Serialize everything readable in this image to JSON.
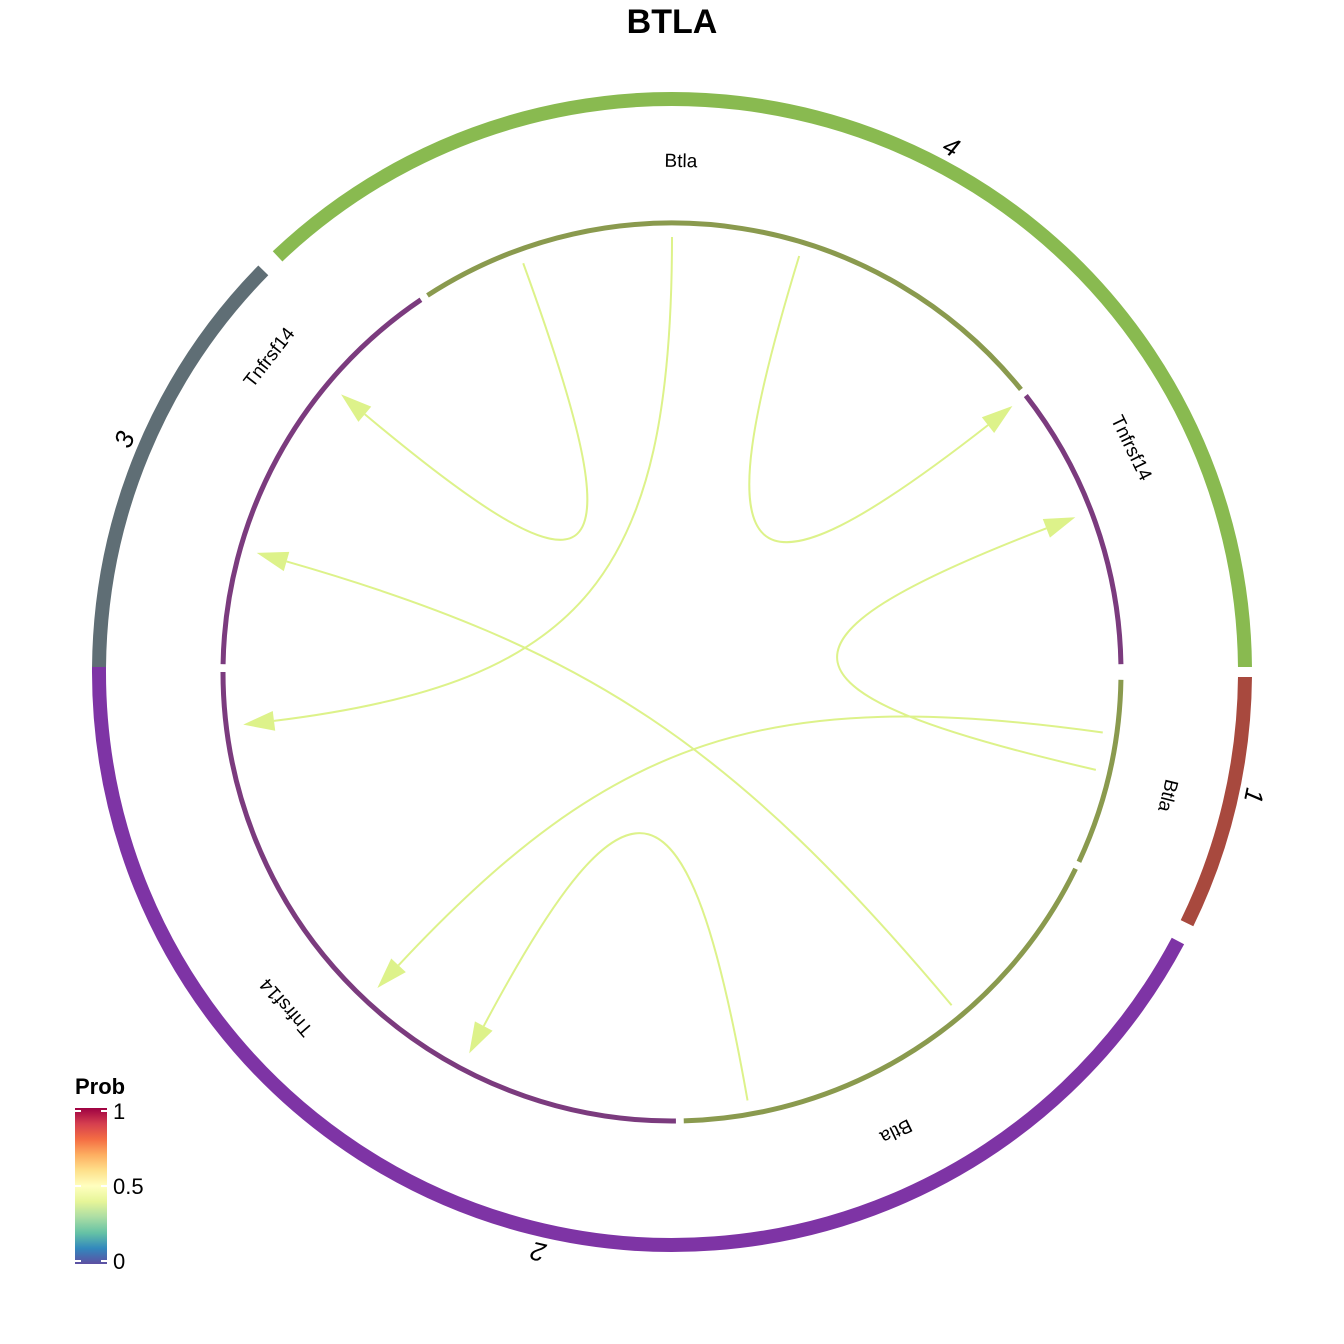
{
  "title": "BTLA",
  "groups": [
    {
      "name": "1",
      "color": "#A8493E"
    },
    {
      "name": "2",
      "color": "#7E34A5"
    },
    {
      "name": "3",
      "color": "#5F6E75"
    },
    {
      "name": "4",
      "color": "#89BA50"
    }
  ],
  "sectors": [
    {
      "gene": "Btla",
      "group": "1",
      "role": "ligand"
    },
    {
      "gene": "Btla",
      "group": "2",
      "role": "ligand"
    },
    {
      "gene": "Tnfrsf14",
      "group": "2",
      "role": "receptor"
    },
    {
      "gene": "Tnfrsf14",
      "group": "3",
      "role": "receptor"
    },
    {
      "gene": "Btla",
      "group": "4",
      "role": "ligand"
    },
    {
      "gene": "Tnfrsf14",
      "group": "4",
      "role": "receptor"
    }
  ],
  "role_colors": {
    "ligand": "#8A9A4E",
    "receptor": "#7B3B7E"
  },
  "links": [
    {
      "source": "Btla (1)",
      "target": "Tnfrsf14 (4)",
      "prob": 0.55
    },
    {
      "source": "Btla (1)",
      "target": "Tnfrsf14 (2)",
      "prob": 0.55
    },
    {
      "source": "Btla (2)",
      "target": "Tnfrsf14 (3)",
      "prob": 0.55
    },
    {
      "source": "Btla (2)",
      "target": "Tnfrsf14 (2)",
      "prob": 0.55
    },
    {
      "source": "Btla (4)",
      "target": "Tnfrsf14 (3)",
      "prob": 0.55
    },
    {
      "source": "Btla (4)",
      "target": "Tnfrsf14 (2)",
      "prob": 0.55
    },
    {
      "source": "Btla (4)",
      "target": "Tnfrsf14 (4)",
      "prob": 0.55
    }
  ],
  "link_color": "#DDF28A",
  "legend": {
    "title": "Prob",
    "ticks": [
      "1",
      "0.5",
      "0"
    ],
    "colors": [
      "#9E0142",
      "#D53E4F",
      "#F46D43",
      "#FDAE61",
      "#FEE08B",
      "#FFFFBF",
      "#E6F598",
      "#ABDDA4",
      "#66C2A5",
      "#3288BD",
      "#5E4FA2"
    ]
  }
}
